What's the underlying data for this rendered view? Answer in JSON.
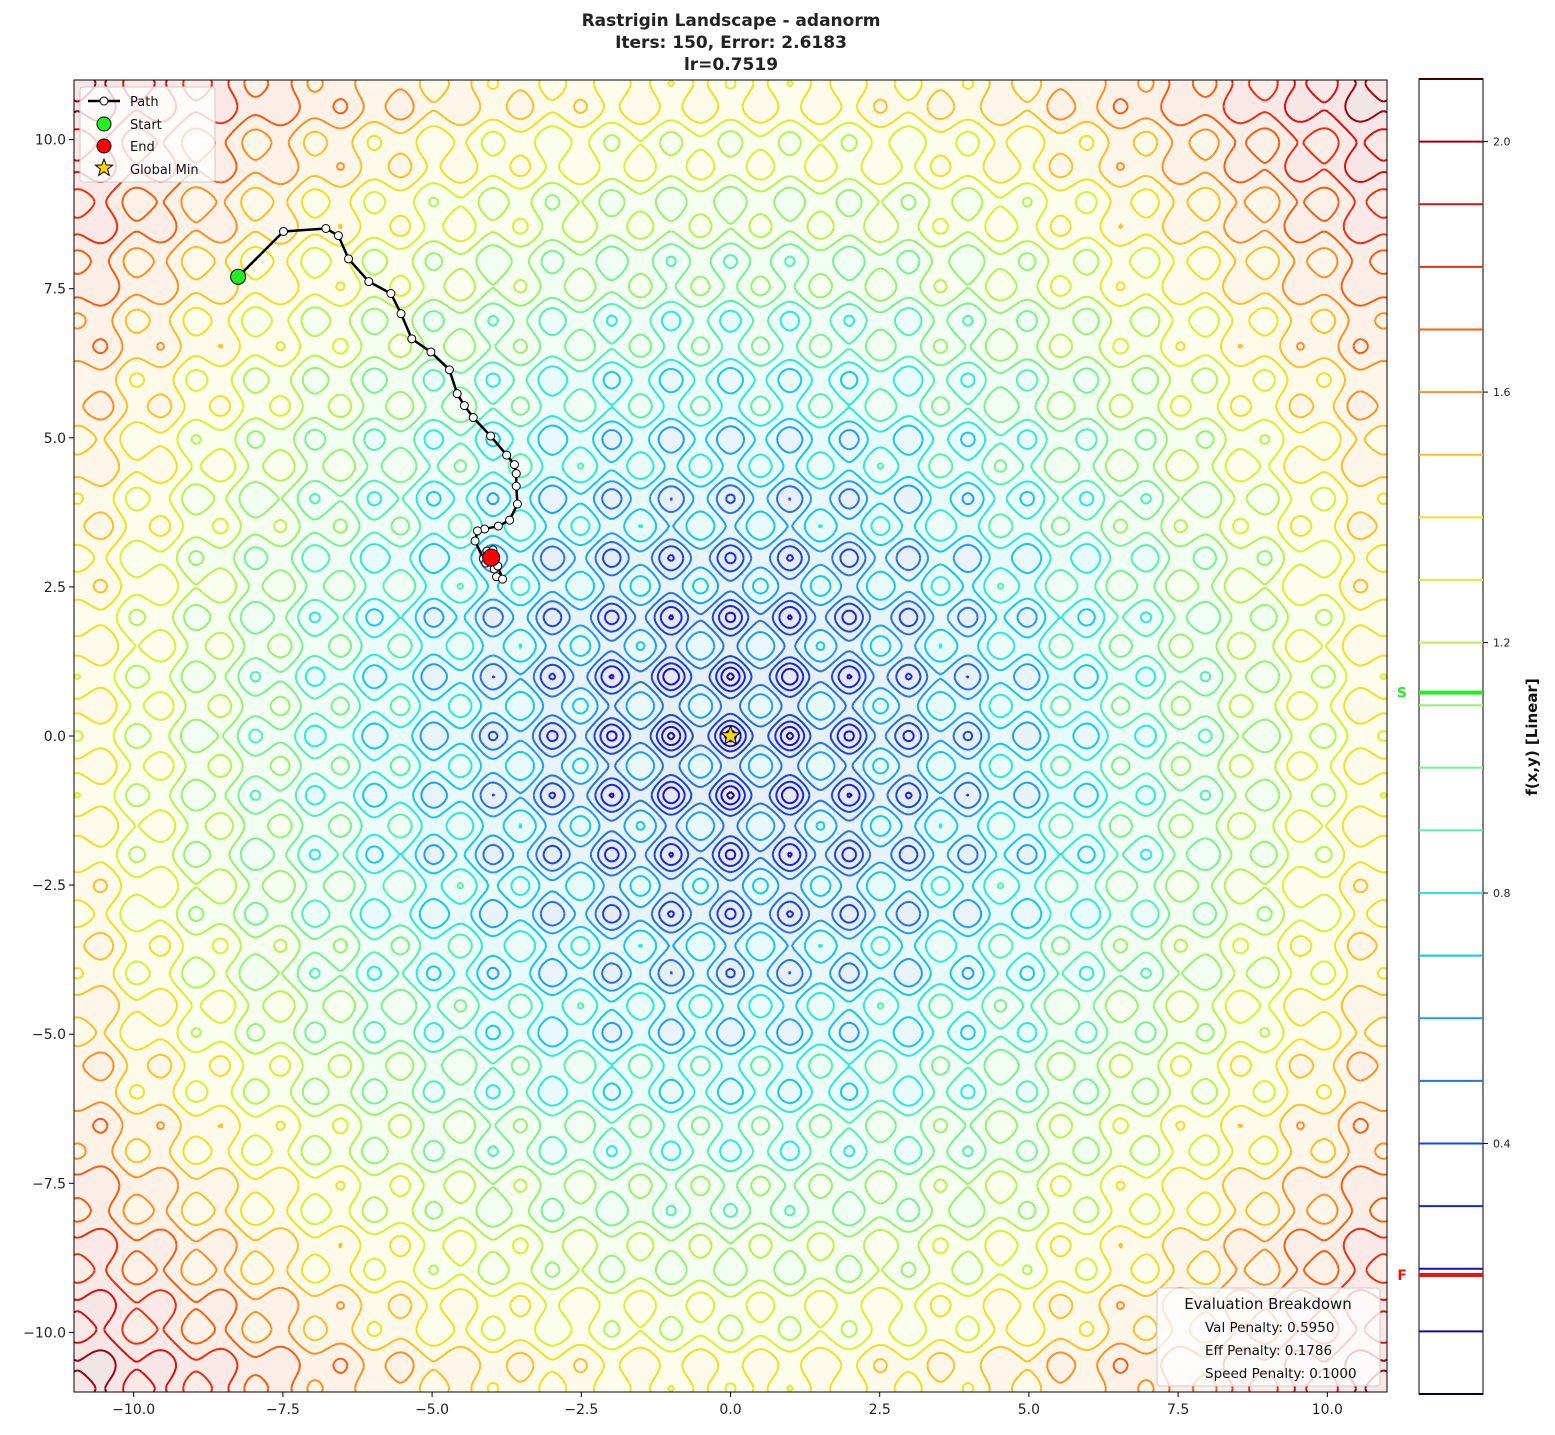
{
  "chart_data": {
    "type": "contour",
    "title_lines": [
      "Rastrigin Landscape - adanorm",
      "Iters: 150, Error: 2.6183",
      "lr=0.7519"
    ],
    "function": "rastrigin",
    "xlim": [
      -11,
      11
    ],
    "ylim": [
      -11,
      11
    ],
    "x_ticks": [
      -10,
      -7.5,
      -5,
      -2.5,
      0,
      2.5,
      5,
      7.5,
      10
    ],
    "x_tick_labels": [
      "−10.0",
      "−7.5",
      "−5.0",
      "−2.5",
      "0.0",
      "2.5",
      "5.0",
      "7.5",
      "10.0"
    ],
    "y_ticks": [
      10,
      7.5,
      5,
      2.5,
      0,
      -2.5,
      -5,
      -7.5,
      -10
    ],
    "y_tick_labels": [
      "10.0",
      "7.5",
      "5.0",
      "2.5",
      "0.0",
      "−2.5",
      "−5.0",
      "−7.5",
      "−10.0"
    ],
    "colorbar": {
      "label": "f(x,y) [Linear]",
      "range": [
        0,
        2.1
      ],
      "levels_step": 0.1,
      "ticks": [
        2.0,
        1.6,
        1.2,
        0.8,
        0.4
      ],
      "tick_labels": [
        "2.0",
        "1.6",
        "1.2",
        "0.8",
        "0.4"
      ],
      "markers": [
        {
          "label": "S",
          "value": 1.12,
          "color": "#22ee22"
        },
        {
          "label": "F",
          "value": 0.19,
          "color": "#ee1111"
        }
      ]
    },
    "colormap": [
      "#000040",
      "#10108a",
      "#1010c8",
      "#1028e0",
      "#1048d8",
      "#1e74e0",
      "#18a0f0",
      "#10c8e8",
      "#28e8d8",
      "#50f0b0",
      "#78f090",
      "#98f070",
      "#b8f050",
      "#d8f030",
      "#f0e020",
      "#f8c020",
      "#f89020",
      "#f06010",
      "#e83010",
      "#d81010",
      "#a00010",
      "#400000"
    ],
    "path": {
      "name": "Path",
      "x": [
        -8.25,
        -7.49,
        -6.78,
        -6.57,
        -6.4,
        -6.06,
        -5.69,
        -5.52,
        -5.34,
        -5.02,
        -4.71,
        -4.58,
        -4.46,
        -4.31,
        -4.02,
        -3.75,
        -3.62,
        -3.59,
        -3.59,
        -3.57,
        -3.7,
        -3.89,
        -4.12,
        -4.24,
        -4.28,
        -4.14,
        -3.96,
        -3.92,
        -3.82,
        -3.9,
        -4.08,
        -4.1,
        -3.98,
        -4.01
      ],
      "y": [
        7.7,
        8.46,
        8.51,
        8.39,
        8.0,
        7.62,
        7.42,
        7.08,
        6.66,
        6.44,
        6.14,
        5.74,
        5.54,
        5.34,
        5.03,
        4.71,
        4.55,
        4.4,
        4.19,
        3.89,
        3.62,
        3.52,
        3.47,
        3.44,
        3.27,
        2.97,
        2.8,
        2.67,
        2.63,
        2.85,
        3.1,
        2.9,
        3.12,
        2.99
      ]
    },
    "start": {
      "name": "Start",
      "x": -8.25,
      "y": 7.7,
      "color": "#22ee22"
    },
    "end": {
      "name": "End",
      "x": -4.01,
      "y": 2.99,
      "color": "#ff0000"
    },
    "global_min": {
      "name": "Global Min",
      "x": 0,
      "y": 0,
      "color": "#ffd700"
    },
    "legend": {
      "placement": "top-left",
      "entries": [
        "Path",
        "Start",
        "End",
        "Global Min"
      ]
    },
    "annotation": {
      "title": "Evaluation Breakdown",
      "lines": [
        "Val Penalty: 0.5950",
        "Eff Penalty: 0.1786",
        "Speed Penalty: 0.1000"
      ],
      "placement": "bottom-right"
    }
  }
}
